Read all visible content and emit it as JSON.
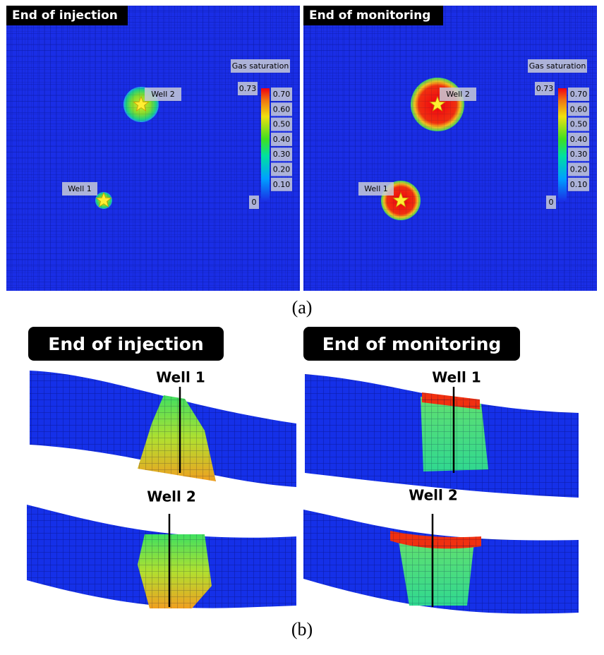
{
  "panel_a": {
    "caption": "(a)",
    "colorbar_title": "Gas saturation",
    "colorbar_max": "0.73",
    "colorbar_ticks": [
      "0.70",
      "0.60",
      "0.50",
      "0.40",
      "0.30",
      "0.20",
      "0.10"
    ],
    "colorbar_min": "0",
    "maps": [
      {
        "title": "End of injection",
        "wells": [
          "Well 1",
          "Well 2"
        ]
      },
      {
        "title": "End of monitoring",
        "wells": [
          "Well 1",
          "Well 2"
        ]
      }
    ]
  },
  "panel_b": {
    "caption": "(b)",
    "sections": [
      {
        "title": "End of injection",
        "wells": [
          "Well 1",
          "Well 2"
        ]
      },
      {
        "title": "End of monitoring",
        "wells": [
          "Well 1",
          "Well 2"
        ]
      }
    ]
  }
}
